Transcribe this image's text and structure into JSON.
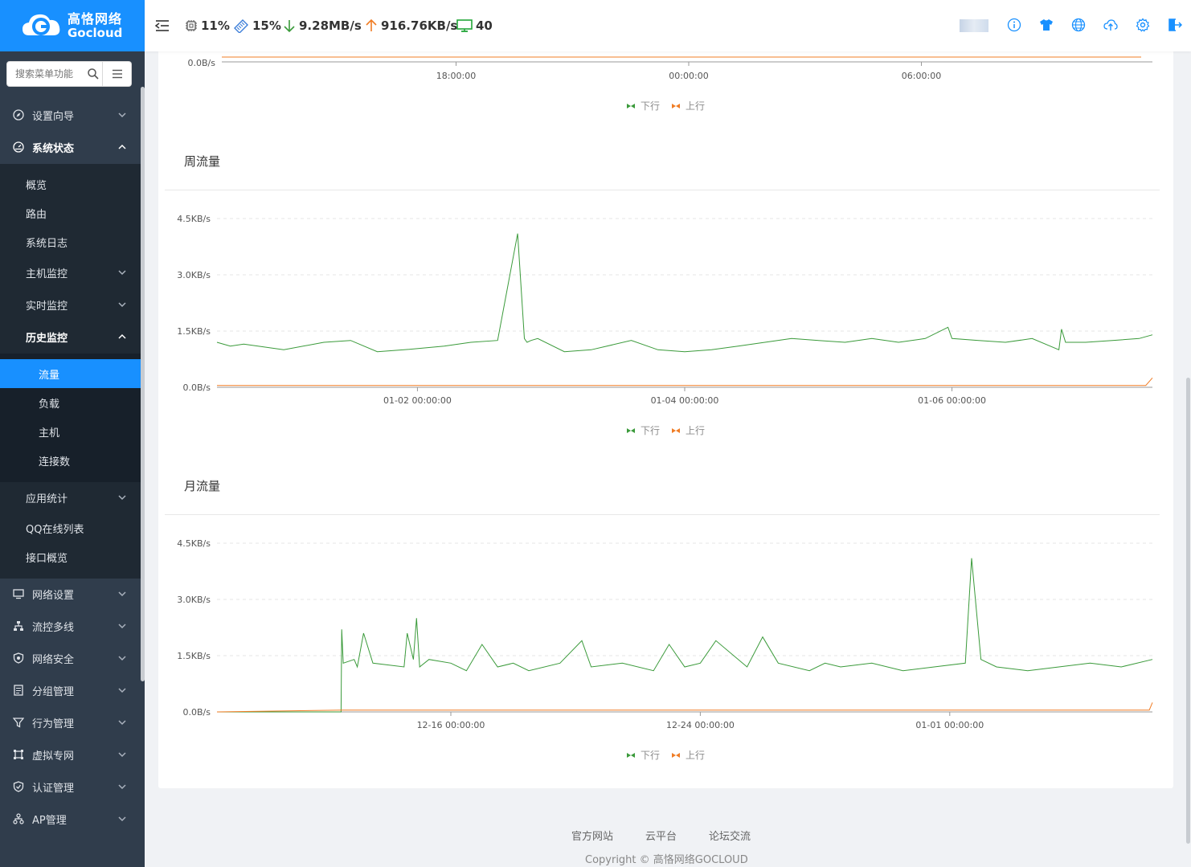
{
  "app": {
    "brand_cn": "高恪网络",
    "brand_en": "Gocloud",
    "accent": "#1890ff",
    "sidebar_bg": "#303d4c"
  },
  "sidebar": {
    "search_placeholder": "搜索菜单功能",
    "items": [
      {
        "label": "设置向导",
        "icon": "compass-icon",
        "expanded": false
      },
      {
        "label": "系统状态",
        "icon": "dashboard-icon",
        "expanded": true
      },
      {
        "label": "网络设置",
        "icon": "monitor-icon",
        "expanded": false
      },
      {
        "label": "流控多线",
        "icon": "sitemap-icon",
        "expanded": false
      },
      {
        "label": "网络安全",
        "icon": "shield-icon",
        "expanded": false
      },
      {
        "label": "分组管理",
        "icon": "group-icon",
        "expanded": false
      },
      {
        "label": "行为管理",
        "icon": "filter-icon",
        "expanded": false
      },
      {
        "label": "虚拟专网",
        "icon": "vpn-icon",
        "expanded": false
      },
      {
        "label": "认证管理",
        "icon": "shield-check-icon",
        "expanded": false
      },
      {
        "label": "AP管理",
        "icon": "ap-icon",
        "expanded": false
      }
    ],
    "status_sub": [
      {
        "label": "概览"
      },
      {
        "label": "路由"
      },
      {
        "label": "系统日志"
      },
      {
        "label": "主机监控",
        "has_children": true
      },
      {
        "label": "实时监控",
        "has_children": true
      },
      {
        "label": "历史监控",
        "has_children": true,
        "expanded": true
      },
      {
        "label": "应用统计",
        "has_children": true
      },
      {
        "label": "QQ在线列表"
      },
      {
        "label": "接口概览"
      }
    ],
    "history_sub": [
      {
        "label": "流量",
        "active": true
      },
      {
        "label": "负载"
      },
      {
        "label": "主机"
      },
      {
        "label": "连接数"
      }
    ]
  },
  "header": {
    "cpu": "11%",
    "memory": "15%",
    "download": "9.28MB/s",
    "upload": "916.76KB/s",
    "online": "40",
    "icons": [
      "info-icon",
      "shirt-icon",
      "globe-icon",
      "cloud-upload-icon",
      "gear-icon",
      "logout-icon"
    ]
  },
  "legend": {
    "down": "下行",
    "up": "上行",
    "down_color": "#3a9a3a",
    "up_color": "#f07c24"
  },
  "chart_data": [
    {
      "type": "line",
      "title": "",
      "partial": true,
      "y_tick_labels": [
        "0.0B/s"
      ],
      "x_tick_labels": [
        "18:00:00",
        "00:00:00",
        "06:00:00"
      ]
    },
    {
      "type": "line",
      "title": "周流量",
      "y_tick_labels": [
        "0.0B/s",
        "1.5KB/s",
        "3.0KB/s",
        "4.5KB/s"
      ],
      "ylim": [
        0,
        4.5
      ],
      "y_unit": "KB/s",
      "x_tick_labels": [
        "01-02 00:00:00",
        "01-04 00:00:00",
        "01-06 00:00:00"
      ],
      "xlim_days": [
        0.5,
        7.5
      ],
      "x_tick_days": [
        2,
        4,
        6
      ],
      "series": [
        {
          "name": "下行",
          "x": [
            0.5,
            0.6,
            0.7,
            1.0,
            1.3,
            1.5,
            1.7,
            1.9,
            2.2,
            2.4,
            2.6,
            2.75,
            2.8,
            2.82,
            2.85,
            2.9,
            3.1,
            3.3,
            3.6,
            3.8,
            4.0,
            4.2,
            4.4,
            4.6,
            4.8,
            5.0,
            5.2,
            5.4,
            5.6,
            5.8,
            5.97,
            6.0,
            6.2,
            6.4,
            6.6,
            6.8,
            6.82,
            6.85,
            7.0,
            7.2,
            7.4,
            7.5
          ],
          "values": [
            1.2,
            1.1,
            1.15,
            1.0,
            1.2,
            1.25,
            0.95,
            1.0,
            1.1,
            1.2,
            1.25,
            4.1,
            1.3,
            1.2,
            1.25,
            1.3,
            0.95,
            1.0,
            1.25,
            1.0,
            0.95,
            1.0,
            1.1,
            1.2,
            1.3,
            1.25,
            1.2,
            1.3,
            1.2,
            1.3,
            1.6,
            1.3,
            1.25,
            1.2,
            1.3,
            1.0,
            1.55,
            1.2,
            1.2,
            1.25,
            1.3,
            1.4
          ]
        },
        {
          "name": "上行",
          "x": [
            0.5,
            7.45,
            7.5
          ],
          "values": [
            0.05,
            0.05,
            0.25
          ]
        }
      ]
    },
    {
      "type": "line",
      "title": "月流量",
      "y_tick_labels": [
        "0.0B/s",
        "1.5KB/s",
        "3.0KB/s",
        "4.5KB/s"
      ],
      "ylim": [
        0,
        4.5
      ],
      "y_unit": "KB/s",
      "x_tick_labels": [
        "12-16 00:00:00",
        "12-24 00:00:00",
        "01-01 00:00:00"
      ],
      "xlim_days": [
        0,
        30
      ],
      "x_tick_days": [
        7.5,
        15.5,
        23.5
      ],
      "series": [
        {
          "name": "下行",
          "x": [
            0,
            3.98,
            4.0,
            4.05,
            4.4,
            4.5,
            4.7,
            5.0,
            6.0,
            6.1,
            6.3,
            6.4,
            6.5,
            6.8,
            7.5,
            8.0,
            8.5,
            9.0,
            9.5,
            10.0,
            11.0,
            11.7,
            12.0,
            13.0,
            14.0,
            14.5,
            15.0,
            15.5,
            16.0,
            17.0,
            17.5,
            18.0,
            19.0,
            19.5,
            20.0,
            21.0,
            22.0,
            23.0,
            24.0,
            24.2,
            24.5,
            25.0,
            26.0,
            27.0,
            28.0,
            29.0,
            30.0
          ],
          "values": [
            0,
            0,
            2.2,
            1.3,
            1.4,
            1.2,
            2.1,
            1.3,
            1.2,
            2.1,
            1.4,
            2.5,
            1.2,
            1.4,
            1.3,
            1.1,
            1.8,
            1.2,
            1.3,
            1.1,
            1.3,
            1.9,
            1.2,
            1.3,
            1.1,
            1.8,
            1.2,
            1.3,
            1.9,
            1.2,
            2.0,
            1.3,
            1.1,
            1.3,
            1.2,
            1.3,
            1.1,
            1.2,
            1.3,
            4.1,
            1.4,
            1.2,
            1.1,
            1.2,
            1.3,
            1.2,
            1.4
          ]
        },
        {
          "name": "上行",
          "x": [
            0,
            4.0,
            29.9,
            30.0
          ],
          "values": [
            0,
            0.05,
            0.05,
            0.25
          ]
        }
      ]
    }
  ],
  "footer": {
    "links": [
      "官方网站",
      "云平台",
      "论坛交流"
    ],
    "copyright": "Copyright © 高恪网络GOCLOUD"
  }
}
